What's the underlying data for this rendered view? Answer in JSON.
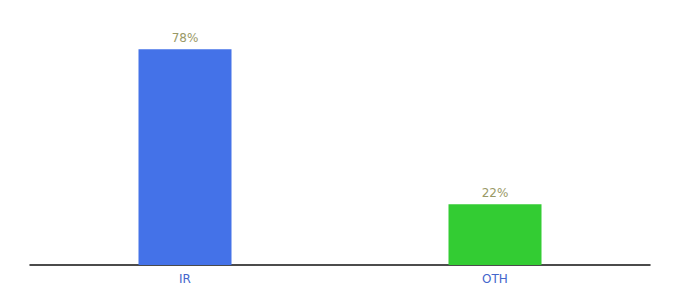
{
  "chart_data": {
    "type": "bar",
    "categories": [
      "IR",
      "OTH"
    ],
    "values": [
      78,
      22
    ],
    "value_labels": [
      "78%",
      "22%"
    ],
    "data_labels": true,
    "colors": [
      "#4472e8",
      "#33cc33"
    ],
    "ylim": [
      0,
      85
    ],
    "grid": false,
    "tick_labels": "x"
  }
}
